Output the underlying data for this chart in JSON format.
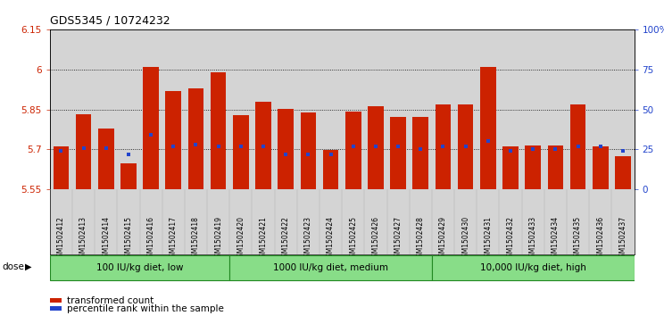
{
  "title": "GDS5345 / 10724232",
  "samples": [
    "GSM1502412",
    "GSM1502413",
    "GSM1502414",
    "GSM1502415",
    "GSM1502416",
    "GSM1502417",
    "GSM1502418",
    "GSM1502419",
    "GSM1502420",
    "GSM1502421",
    "GSM1502422",
    "GSM1502423",
    "GSM1502424",
    "GSM1502425",
    "GSM1502426",
    "GSM1502427",
    "GSM1502428",
    "GSM1502429",
    "GSM1502430",
    "GSM1502431",
    "GSM1502432",
    "GSM1502433",
    "GSM1502434",
    "GSM1502435",
    "GSM1502436",
    "GSM1502437"
  ],
  "bar_values": [
    5.71,
    5.832,
    5.778,
    5.648,
    6.008,
    5.92,
    5.928,
    5.988,
    5.828,
    5.878,
    5.852,
    5.84,
    5.698,
    5.842,
    5.862,
    5.82,
    5.82,
    5.87,
    5.868,
    6.008,
    5.71,
    5.715,
    5.715,
    5.87,
    5.71,
    5.675
  ],
  "percentile_values": [
    24,
    26,
    26,
    22,
    34,
    27,
    28,
    27,
    27,
    27,
    22,
    22,
    22,
    27,
    27,
    27,
    25,
    27,
    27,
    30,
    24,
    25,
    25,
    27,
    27,
    24
  ],
  "groups": [
    {
      "label": "100 IU/kg diet, low",
      "start": 0,
      "end": 8
    },
    {
      "label": "1000 IU/kg diet, medium",
      "start": 8,
      "end": 17
    },
    {
      "label": "10,000 IU/kg diet, high",
      "start": 17,
      "end": 26
    }
  ],
  "ylim_min": 5.55,
  "ylim_max": 6.15,
  "yticks": [
    5.55,
    5.7,
    5.85,
    6.0,
    6.15
  ],
  "ytick_labels": [
    "5.55",
    "5.7",
    "5.85",
    "6",
    "6.15"
  ],
  "right_yticks": [
    0,
    25,
    50,
    75,
    100
  ],
  "right_ytick_labels": [
    "0",
    "25",
    "50",
    "75",
    "100%"
  ],
  "bar_color": "#cc2200",
  "blue_color": "#2244cc",
  "bg_plot": "#d4d4d4",
  "bg_xtick": "#d4d4d4",
  "bg_group": "#88dd88",
  "group_border": "#44aa44",
  "group_border_dark": "#228822"
}
